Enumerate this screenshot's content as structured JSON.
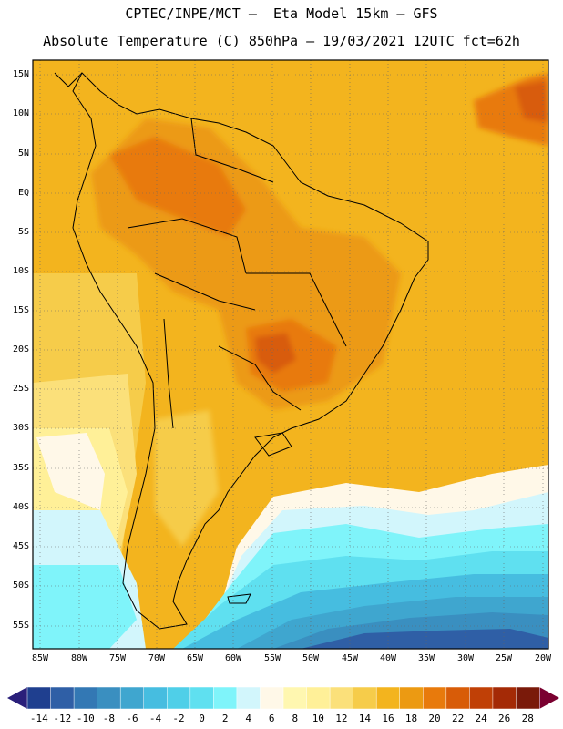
{
  "title": {
    "line1": "CPTEC/INPE/MCT –  Eta Model 15km – GFS",
    "line2": "Absolute Temperature (C) 850hPa – 19/03/2021 12UTC fct=62h"
  },
  "lat_labels": [
    "15N",
    "10N",
    "5N",
    "EQ",
    "5S",
    "10S",
    "15S",
    "20S",
    "25S",
    "30S",
    "35S",
    "40S",
    "45S",
    "50S",
    "55S"
  ],
  "lon_labels": [
    "85W",
    "80W",
    "75W",
    "70W",
    "65W",
    "60W",
    "55W",
    "50W",
    "45W",
    "40W",
    "35W",
    "30W",
    "25W",
    "20W"
  ],
  "colorbar": {
    "labels": [
      "-14",
      "-12",
      "-10",
      "-8",
      "-6",
      "-4",
      "-2",
      "0",
      "2",
      "4",
      "6",
      "8",
      "10",
      "12",
      "14",
      "16",
      "18",
      "20",
      "22",
      "24",
      "26",
      "28"
    ],
    "colors": [
      "#1f3f8f",
      "#2f5fa6",
      "#3378b4",
      "#3a8fc0",
      "#3fa6cf",
      "#46bde0",
      "#4fcfe8",
      "#5fe0f0",
      "#7ff4fa",
      "#d2f6fc",
      "#fff8e8",
      "#fff7b0",
      "#fff098",
      "#fbe07a",
      "#f6cc4a",
      "#f3b41e",
      "#ec9a12",
      "#e87a0c",
      "#d85c08",
      "#c04006",
      "#a42a06",
      "#7a1a0a"
    ],
    "left_arrow": "#2a1f7a",
    "right_arrow": "#7a0030"
  }
}
